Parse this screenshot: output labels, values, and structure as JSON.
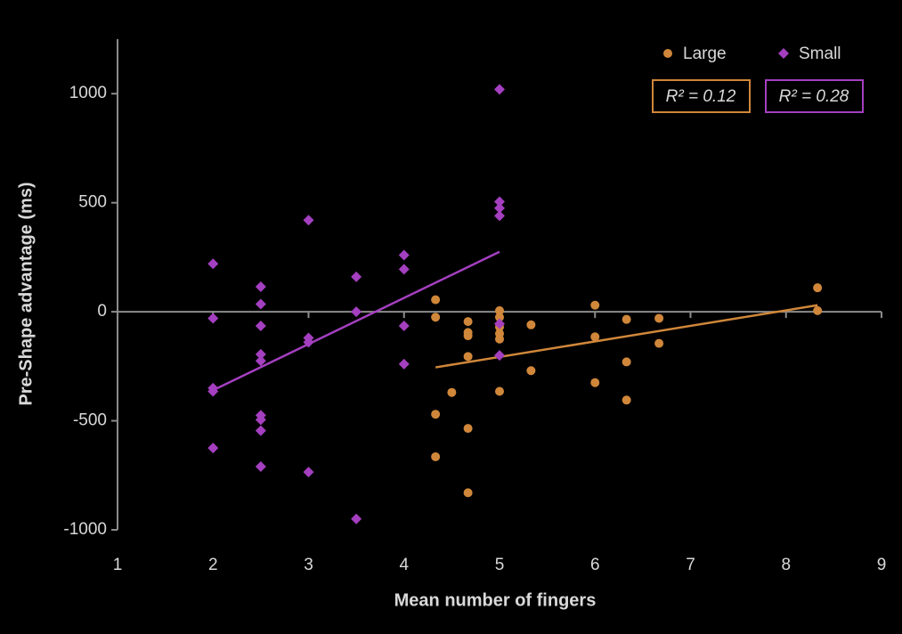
{
  "chart_data": {
    "type": "scatter",
    "xlabel": "Mean number of fingers",
    "ylabel": "Pre-Shape advantage (ms)",
    "xlim": [
      1,
      9
    ],
    "xticks": [
      1,
      2,
      3,
      4,
      5,
      6,
      7,
      8,
      9
    ],
    "ylim": [
      -1000,
      1250
    ],
    "yticks": [
      -1000,
      -500,
      0,
      500,
      1000
    ],
    "series": [
      {
        "name": "Large",
        "color": "#d0873a",
        "marker": "circle",
        "x": [
          4.33,
          4.33,
          4.33,
          4.33,
          4.5,
          4.67,
          4.67,
          4.67,
          4.67,
          4.67,
          4.67,
          5,
          5,
          5,
          5,
          5,
          5,
          5.33,
          5.33,
          6,
          6,
          6,
          6.33,
          6.33,
          6.33,
          6.67,
          6.67,
          8.33,
          8.33
        ],
        "values": [
          55,
          -25,
          -470,
          -665,
          -370,
          -45,
          -95,
          -110,
          -205,
          -535,
          -830,
          5,
          -25,
          -70,
          -100,
          -125,
          -365,
          -60,
          -270,
          30,
          -115,
          -325,
          -35,
          -230,
          -405,
          -30,
          -145,
          110,
          5
        ]
      },
      {
        "name": "Small",
        "color": "#a43fc0",
        "marker": "diamond",
        "x": [
          2,
          2,
          2,
          2,
          2,
          2.5,
          2.5,
          2.5,
          2.5,
          2.5,
          2.5,
          2.5,
          2.5,
          2.5,
          3,
          3,
          3,
          3,
          3.5,
          3.5,
          3.5,
          4,
          4,
          4,
          4,
          5,
          5,
          5,
          5,
          5,
          5
        ],
        "values": [
          220,
          -30,
          -350,
          -365,
          -625,
          115,
          35,
          -65,
          -195,
          -225,
          -475,
          -495,
          -545,
          -710,
          420,
          -120,
          -140,
          -735,
          160,
          0,
          -950,
          260,
          195,
          -65,
          -240,
          1020,
          505,
          475,
          440,
          -55,
          -200
        ]
      }
    ],
    "trendlines": [
      {
        "color": "#d0873a",
        "x": [
          4.33,
          8.33
        ],
        "values": [
          -255,
          30
        ]
      },
      {
        "color": "#a43fc0",
        "x": [
          2,
          5
        ],
        "values": [
          -360,
          275
        ]
      }
    ],
    "annotations": [
      {
        "text": "R² = 0.12",
        "color": "#d0873a"
      },
      {
        "text": "R² = 0.28",
        "color": "#a43fc0"
      }
    ]
  }
}
